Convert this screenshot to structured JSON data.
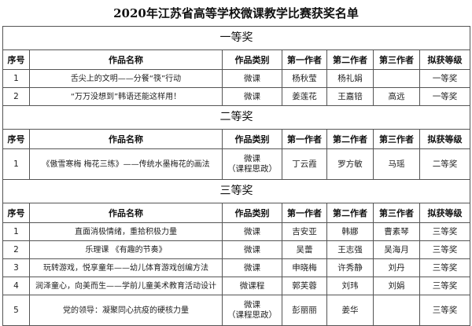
{
  "title": "2020年江苏省高等学校微课教学比赛获奖名单",
  "columns": [
    "序号",
    "作品名称",
    "作品类别",
    "第一作者",
    "第二作者",
    "第三作者",
    "拟获等级"
  ],
  "sections": [
    {
      "label": "一等奖",
      "rows": [
        {
          "no": "1",
          "name": "舌尖上的文明——分餐“筷”行动",
          "type": [
            "微课"
          ],
          "a1": "杨秋莹",
          "a2": "杨礼娟",
          "a3": "",
          "level": "一等奖"
        },
        {
          "no": "2",
          "name": "“万万没想到”韩语还能这样用！",
          "type": [
            "微课"
          ],
          "a1": "姜莲花",
          "a2": "王嘉锫",
          "a3": "高远",
          "level": "一等奖"
        }
      ]
    },
    {
      "label": "二等奖",
      "rows": [
        {
          "no": "1",
          "name": "《傲雪寒梅 梅花三练》——传统水墨梅花的画法",
          "type": [
            "微课",
            "（课程思政）"
          ],
          "a1": "丁云霞",
          "a2": "罗方敏",
          "a3": "马瑶",
          "level": "二等奖"
        }
      ]
    },
    {
      "label": "三等奖",
      "rows": [
        {
          "no": "1",
          "name": "直面消极情绪，重拾积极力量",
          "type": [
            "微课"
          ],
          "a1": "吉安亚",
          "a2": "韩娜",
          "a3": "曹素琴",
          "level": "三等奖"
        },
        {
          "no": "2",
          "name": "乐理课 《有趣的节奏》",
          "type": [
            "微课"
          ],
          "a1": "吴蕾",
          "a2": "王志强",
          "a3": "吴海月",
          "level": "三等奖"
        },
        {
          "no": "3",
          "name": "玩转游戏，悦享童年——幼儿体育游戏创编方法",
          "type": [
            "微课"
          ],
          "a1": "申晓梅",
          "a2": "许秀静",
          "a3": "刘丹",
          "level": "三等奖"
        },
        {
          "no": "4",
          "name": "润泽童心，向美而生——学前儿童美术教育活动设计",
          "type": [
            "微课程"
          ],
          "a1": "郭芙蓉",
          "a2": "刘玮",
          "a3": "刘娟",
          "level": "三等奖"
        },
        {
          "no": "5",
          "name": "党的领导：凝聚同心抗疫的硬核力量",
          "type": [
            "微课",
            "（课程思政）"
          ],
          "a1": "彭丽丽",
          "a2": "姜华",
          "a3": "",
          "level": "三等奖"
        }
      ]
    }
  ]
}
